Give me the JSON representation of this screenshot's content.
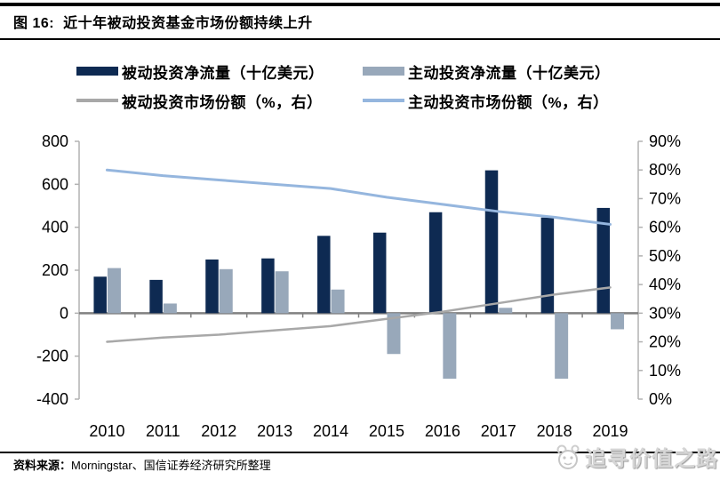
{
  "figure": {
    "label": "图 16:",
    "title": "近十年被动投资基金市场份额持续上升"
  },
  "chart_data": {
    "type": "bar+line",
    "title": "近十年被动投资基金市场份额持续上升",
    "categories": [
      "2010",
      "2011",
      "2012",
      "2013",
      "2014",
      "2015",
      "2016",
      "2017",
      "2018",
      "2019"
    ],
    "series": [
      {
        "name": "被动投资净流量（十亿美元）",
        "type": "bar",
        "axis": "left",
        "color": "#0e2a52",
        "values": [
          170,
          155,
          250,
          255,
          360,
          375,
          470,
          665,
          445,
          490
        ]
      },
      {
        "name": "主动投资净流量（十亿美元）",
        "type": "bar",
        "axis": "left",
        "color": "#98a8ba",
        "values": [
          210,
          45,
          205,
          195,
          110,
          -190,
          -305,
          25,
          -305,
          -75
        ]
      },
      {
        "name": "被动投资市场份额（%，右）",
        "type": "line",
        "axis": "right",
        "color": "#a8a8a8",
        "values": [
          20,
          21.5,
          22.5,
          24,
          25.5,
          28,
          30.5,
          33.5,
          36.5,
          39
        ]
      },
      {
        "name": "主动投资市场份额（%，右）",
        "type": "line",
        "axis": "right",
        "color": "#95b6de",
        "values": [
          80,
          78,
          76.5,
          75,
          73.5,
          70.5,
          68,
          65.5,
          63.5,
          61
        ]
      }
    ],
    "left_axis": {
      "min": -400,
      "max": 800,
      "step": 200,
      "tick_labels": [
        "800",
        "600",
        "400",
        "200",
        "0",
        "-200",
        "-400"
      ]
    },
    "right_axis": {
      "min": 0,
      "max": 90,
      "step": 10,
      "tick_labels": [
        "90%",
        "80%",
        "70%",
        "60%",
        "50%",
        "40%",
        "30%",
        "20%",
        "10%",
        "0%"
      ]
    },
    "legend_position": "top",
    "grid": "off"
  },
  "footer": {
    "source_label": "资料来源：",
    "source_text": "Morningstar、国信证券经济研究所整理",
    "watermark": "追寻价值之路"
  }
}
